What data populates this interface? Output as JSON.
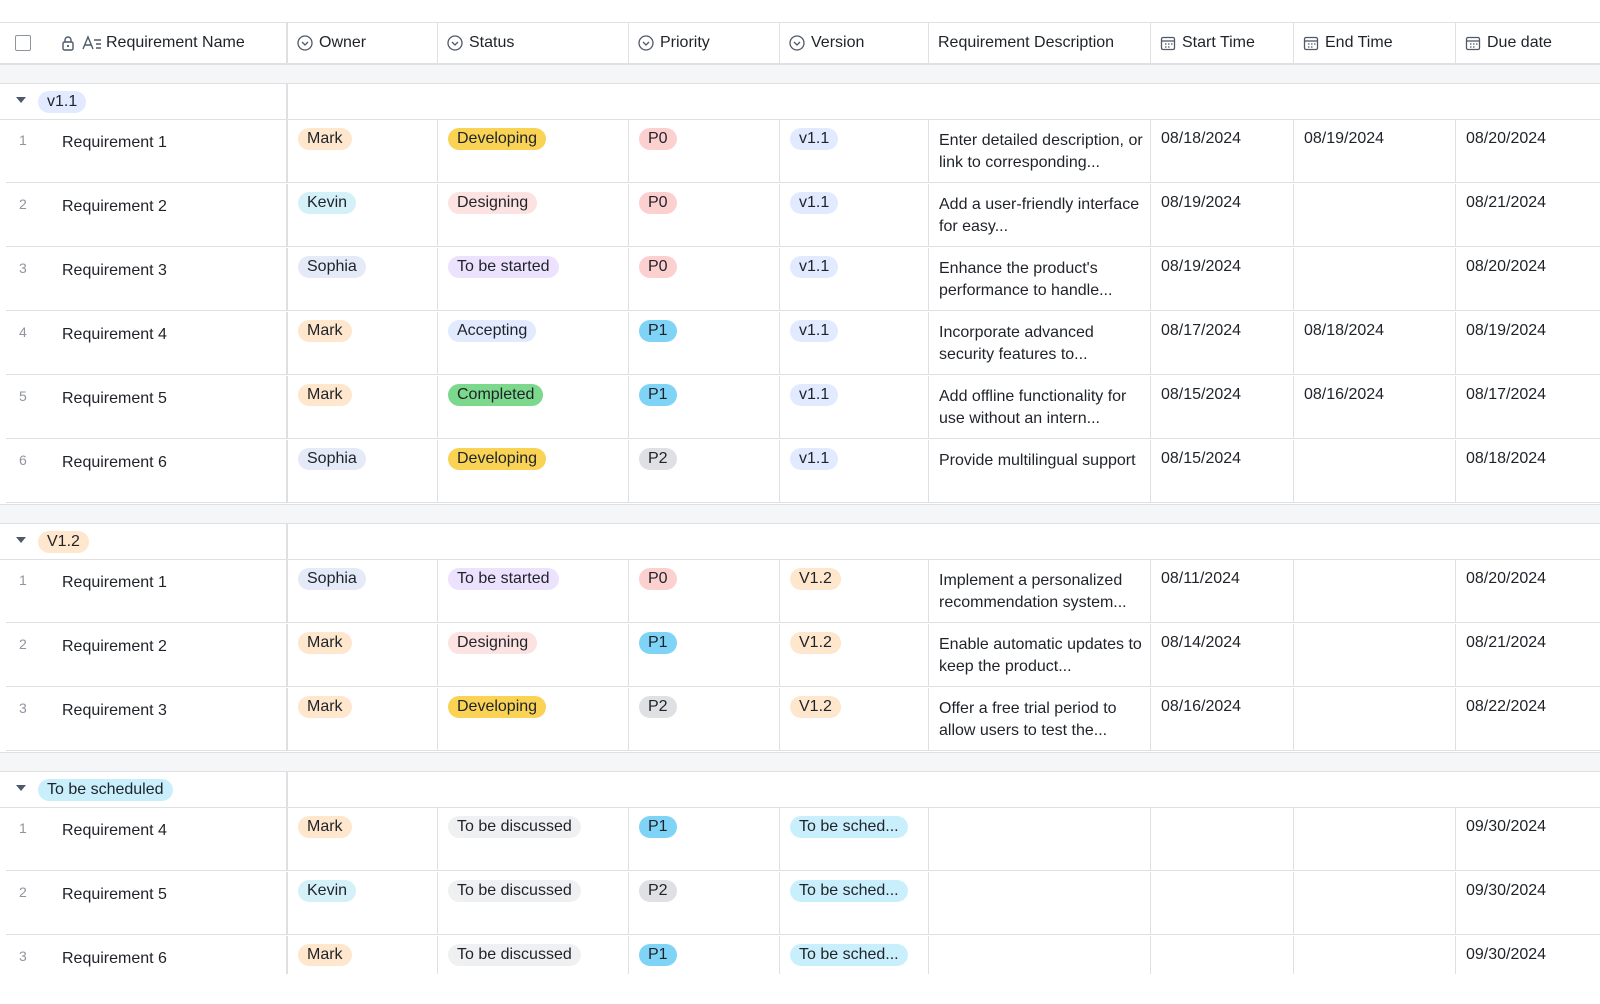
{
  "columns": [
    {
      "key": "name",
      "label": "Requirement Name",
      "icon": "text-lock-icon"
    },
    {
      "key": "owner",
      "label": "Owner",
      "icon": "option-circle-icon"
    },
    {
      "key": "status",
      "label": "Status",
      "icon": "option-circle-icon"
    },
    {
      "key": "priority",
      "label": "Priority",
      "icon": "option-circle-icon"
    },
    {
      "key": "version",
      "label": "Version",
      "icon": "option-circle-icon"
    },
    {
      "key": "description",
      "label": "Requirement Description",
      "icon": ""
    },
    {
      "key": "start",
      "label": "Start Time",
      "icon": "calendar-icon"
    },
    {
      "key": "end",
      "label": "End Time",
      "icon": "calendar-icon"
    },
    {
      "key": "due",
      "label": "Due date",
      "icon": "calendar-icon"
    }
  ],
  "tag_colors": {
    "Mark": {
      "bg": "#fee7cd",
      "fg": "#1f2329"
    },
    "Kevin": {
      "bg": "#d4f1fa",
      "fg": "#1f2329"
    },
    "Sophia": {
      "bg": "#e4eaf7",
      "fg": "#1f2329"
    },
    "Developing": {
      "bg": "#fad355",
      "fg": "#1f2329"
    },
    "Designing": {
      "bg": "#fde2e2",
      "fg": "#1f2329"
    },
    "To be started": {
      "bg": "#ece2fe",
      "fg": "#1f2329"
    },
    "Accepting": {
      "bg": "#e1eaff",
      "fg": "#1f2329"
    },
    "Completed": {
      "bg": "#7bd88d",
      "fg": "#1f2329"
    },
    "To be discussed": {
      "bg": "#eff0f1",
      "fg": "#1f2329"
    },
    "P0": {
      "bg": "#fdd0d0",
      "fg": "#1f2329"
    },
    "P1": {
      "bg": "#7fd3f7",
      "fg": "#1f2329"
    },
    "P2": {
      "bg": "#dee0e3",
      "fg": "#1f2329"
    },
    "v1.1": {
      "bg": "#e1eaff",
      "fg": "#1f2329"
    },
    "V1.2": {
      "bg": "#fee7cd",
      "fg": "#1f2329"
    },
    "To be scheduled": {
      "bg": "#caeffc",
      "fg": "#1f2329"
    },
    "To be sched...": {
      "bg": "#caeffc",
      "fg": "#1f2329"
    }
  },
  "groups": [
    {
      "label": "v1.1",
      "rows": [
        {
          "idx": "1",
          "name": "Requirement 1",
          "owner": "Mark",
          "status": "Developing",
          "priority": "P0",
          "version": "v1.1",
          "description": "Enter detailed description, or link to corresponding...",
          "start": "08/18/2024",
          "end": "08/19/2024",
          "due": "08/20/2024"
        },
        {
          "idx": "2",
          "name": "Requirement 2",
          "owner": "Kevin",
          "status": "Designing",
          "priority": "P0",
          "version": "v1.1",
          "description": "Add a user-friendly interface for easy...",
          "start": "08/19/2024",
          "end": "",
          "due": "08/21/2024"
        },
        {
          "idx": "3",
          "name": "Requirement 3",
          "owner": "Sophia",
          "status": "To be started",
          "priority": "P0",
          "version": "v1.1",
          "description": "Enhance the product's performance to handle...",
          "start": "08/19/2024",
          "end": "",
          "due": "08/20/2024"
        },
        {
          "idx": "4",
          "name": "Requirement 4",
          "owner": "Mark",
          "status": "Accepting",
          "priority": "P1",
          "version": "v1.1",
          "description": "Incorporate advanced security features to...",
          "start": "08/17/2024",
          "end": "08/18/2024",
          "due": "08/19/2024"
        },
        {
          "idx": "5",
          "name": "Requirement 5",
          "owner": "Mark",
          "status": "Completed",
          "priority": "P1",
          "version": "v1.1",
          "description": "Add offline functionality for use without an intern...",
          "start": "08/15/2024",
          "end": "08/16/2024",
          "due": "08/17/2024"
        },
        {
          "idx": "6",
          "name": "Requirement 6",
          "owner": "Sophia",
          "status": "Developing",
          "priority": "P2",
          "version": "v1.1",
          "description": "Provide multilingual support",
          "start": "08/15/2024",
          "end": "",
          "due": "08/18/2024"
        }
      ]
    },
    {
      "label": "V1.2",
      "rows": [
        {
          "idx": "1",
          "name": "Requirement 1",
          "owner": "Sophia",
          "status": "To be started",
          "priority": "P0",
          "version": "V1.2",
          "description": "Implement a personalized recommendation system...",
          "start": "08/11/2024",
          "end": "",
          "due": "08/20/2024"
        },
        {
          "idx": "2",
          "name": "Requirement 2",
          "owner": "Mark",
          "status": "Designing",
          "priority": "P1",
          "version": "V1.2",
          "description": "Enable automatic updates to keep the product...",
          "start": "08/14/2024",
          "end": "",
          "due": "08/21/2024"
        },
        {
          "idx": "3",
          "name": "Requirement 3",
          "owner": "Mark",
          "status": "Developing",
          "priority": "P2",
          "version": "V1.2",
          "description": "Offer a free trial period to allow users to test the...",
          "start": "08/16/2024",
          "end": "",
          "due": "08/22/2024"
        }
      ]
    },
    {
      "label": "To be scheduled",
      "rows": [
        {
          "idx": "1",
          "name": "Requirement 4",
          "owner": "Mark",
          "status": "To be discussed",
          "priority": "P1",
          "version": "To be sched...",
          "description": "",
          "start": "",
          "end": "",
          "due": "09/30/2024"
        },
        {
          "idx": "2",
          "name": "Requirement 5",
          "owner": "Kevin",
          "status": "To be discussed",
          "priority": "P2",
          "version": "To be sched...",
          "description": "",
          "start": "",
          "end": "",
          "due": "09/30/2024"
        },
        {
          "idx": "3",
          "name": "Requirement 6",
          "owner": "Mark",
          "status": "To be discussed",
          "priority": "P1",
          "version": "To be sched...",
          "description": "",
          "start": "",
          "end": "",
          "due": "09/30/2024"
        }
      ]
    }
  ]
}
